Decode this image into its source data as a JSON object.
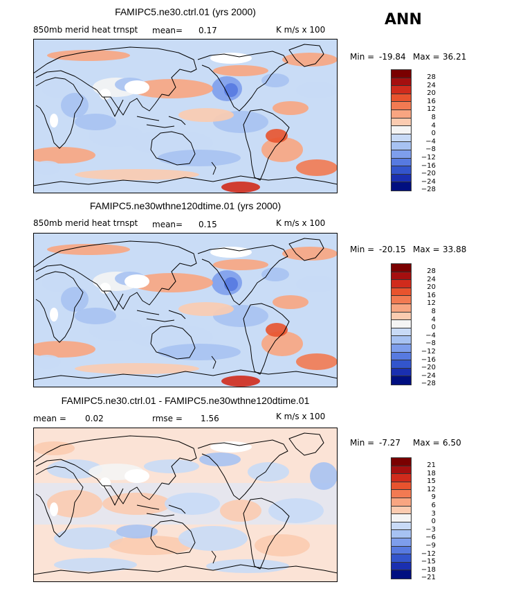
{
  "season_label": "ANN",
  "panels": [
    {
      "title": "FAMIPC5.ne30.ctrl.01 (yrs 2000)",
      "var_label": "850mb merid heat trnspt",
      "stat1_label": "mean=",
      "stat1_value": "0.17",
      "stat2_label": "",
      "stat2_value": "",
      "units": "K m/s x 100",
      "min_label": "Min =",
      "min_value": "-19.84",
      "max_label": "Max =",
      "max_value": "36.21",
      "levels": [
        "28",
        "24",
        "20",
        "16",
        "12",
        "8",
        "4",
        "0",
        "−4",
        "−8",
        "−12",
        "−16",
        "−20",
        "−24",
        "−28"
      ],
      "palette": "abs"
    },
    {
      "title": "FAMIPC5.ne30wthne120dtime.01 (yrs 2000)",
      "var_label": "850mb merid heat trnspt",
      "stat1_label": "mean=",
      "stat1_value": "0.15",
      "stat2_label": "",
      "stat2_value": "",
      "units": "K m/s x 100",
      "min_label": "Min =",
      "min_value": "-20.15",
      "max_label": "Max =",
      "max_value": "33.88",
      "levels": [
        "28",
        "24",
        "20",
        "16",
        "12",
        "8",
        "4",
        "0",
        "−4",
        "−8",
        "−12",
        "−16",
        "−20",
        "−24",
        "−28"
      ],
      "palette": "abs"
    },
    {
      "title": "FAMIPC5.ne30.ctrl.01 - FAMIPC5.ne30wthne120dtime.01",
      "var_label": "",
      "stat1_label": "mean =",
      "stat1_value": "0.02",
      "stat2_label": "rmse =",
      "stat2_value": "1.56",
      "units": "K m/s x 100",
      "min_label": "Min =",
      "min_value": "-7.27",
      "max_label": "Max =",
      "max_value": "6.50",
      "levels": [
        "21",
        "18",
        "15",
        "12",
        "9",
        "6",
        "3",
        "0",
        "−3",
        "−6",
        "−9",
        "−12",
        "−15",
        "−18",
        "−21"
      ],
      "palette": "diff"
    }
  ],
  "colors": {
    "scale": [
      "#7a0000",
      "#a50f0f",
      "#d02b1c",
      "#e8532e",
      "#f27a52",
      "#f8a581",
      "#fbcbb0",
      "#f4f4f4",
      "#c8daf6",
      "#a7c2f2",
      "#7e9eec",
      "#577ae0",
      "#3355cc",
      "#1a2fb0",
      "#000f80"
    ],
    "land_coast": "#000000",
    "ocean_base": "#c9dcf6"
  },
  "chart_data": [
    {
      "type": "heatmap",
      "title": "FAMIPC5.ne30.ctrl.01 (yrs 2000)",
      "variable": "850mb merid heat trnspt",
      "units": "K m/s x 100",
      "mean": 0.17,
      "min": -19.84,
      "max": 36.21,
      "contour_levels": [
        -28,
        -24,
        -20,
        -16,
        -12,
        -8,
        -4,
        0,
        4,
        8,
        12,
        16,
        20,
        24,
        28
      ]
    },
    {
      "type": "heatmap",
      "title": "FAMIPC5.ne30wthne120dtime.01 (yrs 2000)",
      "variable": "850mb merid heat trnspt",
      "units": "K m/s x 100",
      "mean": 0.15,
      "min": -20.15,
      "max": 33.88,
      "contour_levels": [
        -28,
        -24,
        -20,
        -16,
        -12,
        -8,
        -4,
        0,
        4,
        8,
        12,
        16,
        20,
        24,
        28
      ]
    },
    {
      "type": "heatmap",
      "title": "FAMIPC5.ne30.ctrl.01 - FAMIPC5.ne30wthne120dtime.01",
      "units": "K m/s x 100",
      "mean": 0.02,
      "rmse": 1.56,
      "min": -7.27,
      "max": 6.5,
      "contour_levels": [
        -21,
        -18,
        -15,
        -12,
        -9,
        -6,
        -3,
        0,
        3,
        6,
        9,
        12,
        15,
        18,
        21
      ]
    }
  ]
}
